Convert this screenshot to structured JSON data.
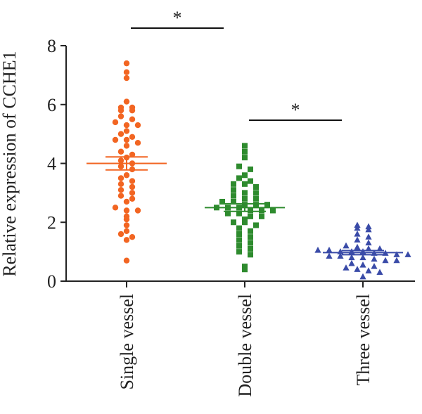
{
  "chart_data": {
    "type": "scatter",
    "subtype": "dot-plot-mean-sem",
    "title": "",
    "xlabel": "",
    "ylabel": "Relative expression of CCHE1",
    "ylim": [
      0,
      8
    ],
    "yticks": [
      0,
      2,
      4,
      6,
      8
    ],
    "categories": [
      "Single vessel",
      "Double vessel",
      "Three vessel"
    ],
    "series": [
      {
        "category": "Single vessel",
        "marker": "circle",
        "color": "#f26522",
        "mean": 4.0,
        "sem": 0.22,
        "values": [
          7.4,
          7.1,
          6.9,
          6.1,
          5.9,
          5.9,
          5.8,
          5.8,
          5.6,
          5.5,
          5.4,
          5.3,
          5.3,
          5.1,
          5.0,
          4.9,
          4.8,
          4.8,
          4.7,
          4.6,
          4.4,
          4.3,
          4.2,
          4.1,
          4.0,
          3.9,
          3.8,
          3.6,
          3.5,
          3.4,
          3.3,
          3.2,
          3.1,
          3.0,
          2.9,
          2.8,
          2.7,
          2.5,
          2.4,
          2.4,
          2.2,
          2.1,
          1.9,
          1.7,
          1.6,
          1.5,
          1.4,
          0.7
        ]
      },
      {
        "category": "Double vessel",
        "marker": "square",
        "color": "#2e8b2e",
        "mean": 2.5,
        "sem": 0.13,
        "values": [
          4.6,
          4.4,
          4.2,
          3.9,
          3.8,
          3.6,
          3.5,
          3.4,
          3.3,
          3.3,
          3.2,
          3.1,
          3.0,
          3.0,
          2.9,
          2.8,
          2.8,
          2.7,
          2.7,
          2.6,
          2.6,
          2.6,
          2.5,
          2.5,
          2.5,
          2.4,
          2.4,
          2.4,
          2.3,
          2.3,
          2.2,
          2.2,
          2.1,
          2.0,
          2.0,
          1.9,
          1.8,
          1.7,
          1.6,
          1.5,
          1.4,
          1.3,
          1.2,
          1.1,
          1.0,
          0.9,
          0.5,
          0.4
        ]
      },
      {
        "category": "Three vessel",
        "marker": "triangle",
        "color": "#3a4ba8",
        "mean": 0.97,
        "sem": 0.07,
        "values": [
          1.9,
          1.85,
          1.8,
          1.75,
          1.6,
          1.5,
          1.4,
          1.3,
          1.2,
          1.15,
          1.1,
          1.1,
          1.05,
          1.05,
          1.0,
          1.0,
          1.0,
          0.95,
          0.95,
          0.9,
          0.9,
          0.85,
          0.85,
          0.8,
          0.8,
          0.75,
          0.7,
          0.7,
          0.6,
          0.55,
          0.5,
          0.45,
          0.4,
          0.35,
          0.3,
          0.15
        ]
      }
    ],
    "significance": [
      {
        "from": "Single vessel",
        "to": "Double vessel",
        "label": "*"
      },
      {
        "from": "Double vessel",
        "to": "Three vessel",
        "label": "*"
      }
    ]
  }
}
